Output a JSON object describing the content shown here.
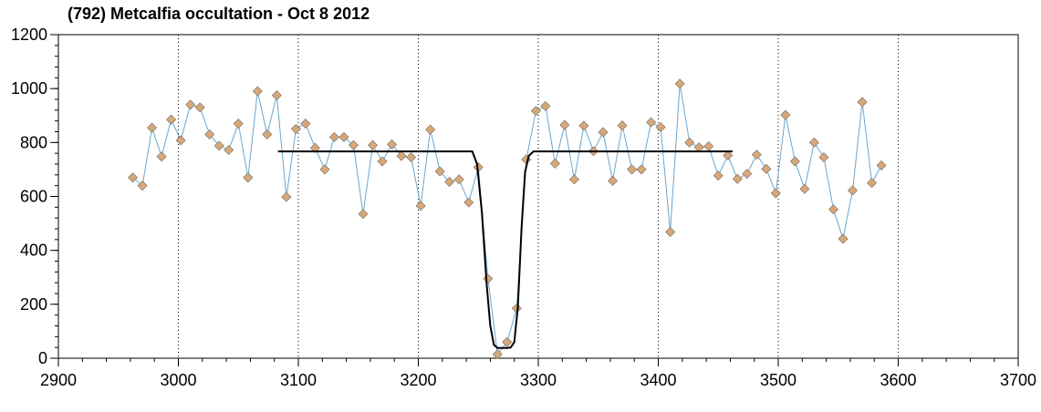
{
  "chart_data": {
    "type": "scatter",
    "title": "(792) Metcalfia occultation - Oct 8 2012",
    "xlabel": "",
    "ylabel": "",
    "xlim": [
      2900,
      3700
    ],
    "ylim": [
      0,
      1200
    ],
    "x_ticks": [
      2900,
      3000,
      3100,
      3200,
      3300,
      3400,
      3500,
      3600,
      3700
    ],
    "y_ticks": [
      0,
      200,
      400,
      600,
      800,
      1000,
      1200
    ],
    "x_minor_step": 20,
    "y_minor_step": 40,
    "vertical_grid": [
      3000,
      3100,
      3200,
      3300,
      3400,
      3500,
      3600
    ],
    "grid": "vertical-dotted",
    "legend": "none",
    "colors": {
      "series_line": "#6aa6cc",
      "marker_fill": "#d8a878",
      "marker_edge": "#8a7f72",
      "model_line": "#000000",
      "axis": "#000000",
      "grid": "#000000"
    },
    "series": [
      {
        "type": "line+markers",
        "x": [
          2962,
          2970,
          2978,
          2986,
          2994,
          3002,
          3010,
          3018,
          3026,
          3034,
          3042,
          3050,
          3058,
          3066,
          3074,
          3082,
          3090,
          3098,
          3106,
          3114,
          3122,
          3130,
          3138,
          3146,
          3154,
          3162,
          3170,
          3178,
          3186,
          3194,
          3202,
          3210,
          3218,
          3226,
          3234,
          3242,
          3250,
          3258,
          3266,
          3274,
          3282,
          3290,
          3298,
          3306,
          3314,
          3322,
          3330,
          3338,
          3346,
          3354,
          3362,
          3370,
          3378,
          3386,
          3394,
          3402,
          3410,
          3418,
          3426,
          3434,
          3442,
          3450,
          3458,
          3466,
          3474,
          3482,
          3490,
          3498,
          3506,
          3514,
          3522,
          3530,
          3538,
          3546,
          3554,
          3562,
          3570,
          3578,
          3586
        ],
        "y": [
          670,
          640,
          855,
          748,
          885,
          808,
          940,
          930,
          830,
          788,
          772,
          870,
          670,
          990,
          830,
          975,
          598,
          850,
          870,
          780,
          700,
          820,
          820,
          790,
          535,
          790,
          730,
          793,
          750,
          745,
          565,
          848,
          693,
          654,
          663,
          578,
          708,
          295,
          15,
          60,
          185,
          737,
          917,
          935,
          722,
          865,
          663,
          862,
          768,
          838,
          658,
          863,
          700,
          700,
          875,
          857,
          468,
          1018,
          800,
          782,
          786,
          677,
          752,
          665,
          684,
          755,
          702,
          612,
          902,
          730,
          628,
          800,
          745,
          552,
          443,
          622,
          950,
          650,
          715
        ]
      },
      {
        "type": "model-line",
        "x": [
          3083,
          3245,
          3249,
          3253,
          3257,
          3260,
          3263,
          3266,
          3270,
          3274,
          3277,
          3280,
          3283,
          3286,
          3289,
          3292,
          3296,
          3462
        ],
        "y": [
          767,
          767,
          720,
          540,
          270,
          120,
          50,
          38,
          38,
          38,
          40,
          60,
          190,
          480,
          690,
          750,
          767,
          767
        ]
      }
    ]
  }
}
